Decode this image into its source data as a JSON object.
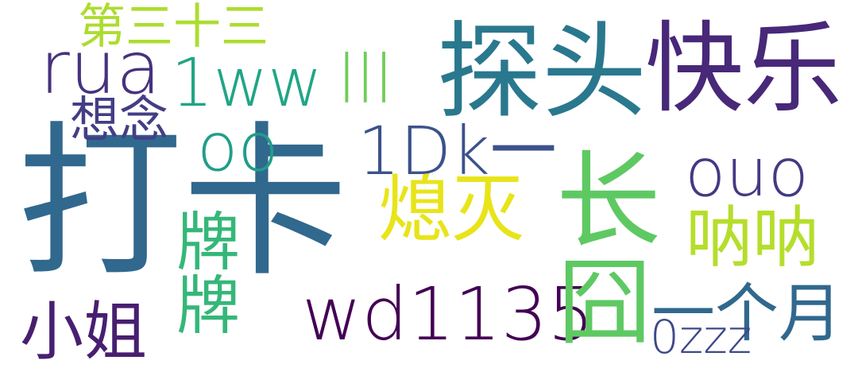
{
  "words": [
    {
      "text": "打卡",
      "color": "#31688e"
    },
    {
      "text": "探头",
      "color": "#2a788e"
    },
    {
      "text": "快乐",
      "color": "#482878"
    },
    {
      "text": "长",
      "color": "#5ec962"
    },
    {
      "text": "wd1135",
      "color": "#440154"
    },
    {
      "text": "囧",
      "color": "#5ec962"
    },
    {
      "text": "一个月",
      "color": "#31688e"
    },
    {
      "text": "熄灭",
      "color": "#e8e419"
    },
    {
      "text": "1ww",
      "color": "#21a585"
    },
    {
      "text": "rua",
      "color": "#46327e"
    },
    {
      "text": "1Dk一",
      "color": "#3b528b"
    },
    {
      "text": "ouo",
      "color": "#443983"
    },
    {
      "text": "呐呐",
      "color": "#b5de2b"
    },
    {
      "text": "小姐",
      "color": "#481f70"
    },
    {
      "text": "牌牌",
      "color": "#35b779"
    },
    {
      "text": "lll",
      "color": "#6ece58"
    },
    {
      "text": "oo",
      "color": "#1f9e89"
    },
    {
      "text": "第三十三",
      "color": "#addc30"
    },
    {
      "text": "想念",
      "color": "#433e85"
    },
    {
      "text": "0zzz",
      "color": "#3e4989"
    }
  ]
}
